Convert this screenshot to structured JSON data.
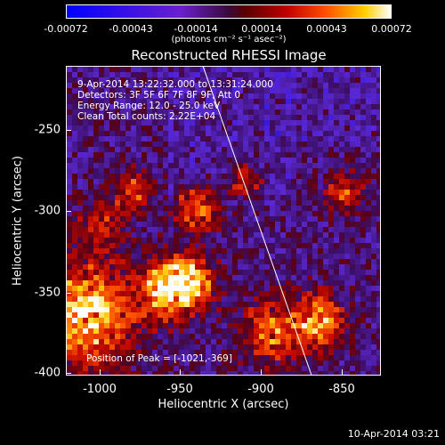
{
  "colorbar": {
    "tick_labels": [
      "-0.00072",
      "-0.00043",
      "-0.00014",
      "0.00014",
      "0.00043",
      "0.00072"
    ],
    "unit_label": "(photons cm⁻² s⁻¹ asec⁻²)",
    "range": [
      -0.00072,
      0.00072
    ]
  },
  "plot": {
    "title": "Reconstructed RHESSI Image",
    "info_lines": [
      "9-Apr-2014 13:22:32.000 to 13:31:24.000",
      "Detectors: 3F 5F 6F 7F 8F 9F, Att 0",
      "Energy Range: 12.0 - 25.0 keV",
      "Clean    Total counts: 2.22E+04"
    ],
    "peak_label": "Position of Peak = [-1021,-369]",
    "x_axis_label": "Heliocentric X (arcsec)",
    "y_axis_label": "Heliocentric Y (arcsec)",
    "x_ticks": [
      "-1000",
      "-950",
      "-900",
      "-850"
    ],
    "y_ticks": [
      "-250",
      "-300",
      "-350",
      "-400"
    ]
  },
  "chart_data": {
    "type": "heatmap",
    "title": "Reconstructed RHESSI Image",
    "xlabel": "Heliocentric X (arcsec)",
    "ylabel": "Heliocentric Y (arcsec)",
    "x_range": [
      -1021,
      -827
    ],
    "y_range": [
      -403,
      -214
    ],
    "value_range": [
      -0.00072,
      0.00072
    ],
    "x_tick_values": [
      -1000,
      -950,
      -900,
      -850
    ],
    "y_tick_values": [
      -250,
      -300,
      -350,
      -400
    ],
    "peak_position": [
      -1021,
      -369
    ],
    "limb_line": {
      "x": [
        -937,
        -870
      ],
      "y": [
        -214,
        -403
      ]
    },
    "colormap": "blue-purple-red-yellow-white"
  },
  "timestamp": "10-Apr-2014 03:21"
}
